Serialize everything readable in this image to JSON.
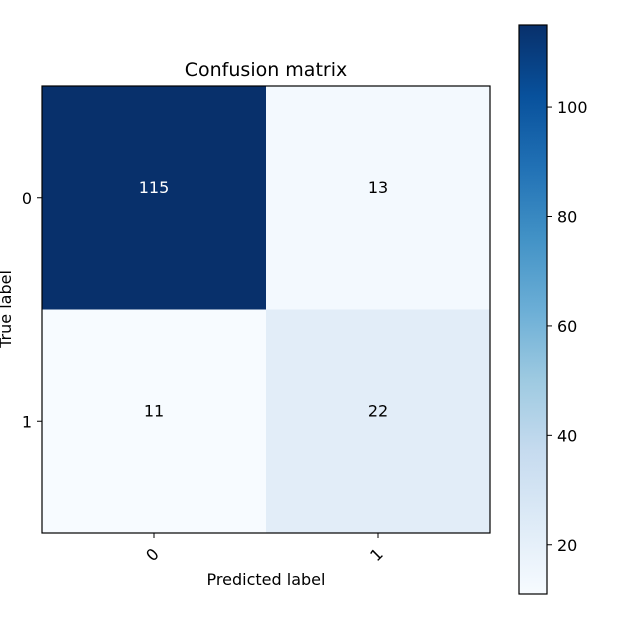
{
  "chart_data": {
    "type": "heatmap",
    "title": "Confusion matrix",
    "xlabel": "Predicted label",
    "ylabel": "True label",
    "x_categories": [
      "0",
      "1"
    ],
    "y_categories": [
      "0",
      "1"
    ],
    "values": [
      [
        115,
        13
      ],
      [
        11,
        22
      ]
    ],
    "colormap": "Blues",
    "value_range": [
      11,
      115
    ],
    "colorbar": {
      "ticks": [
        20,
        40,
        60,
        80,
        100
      ],
      "tick_labels": [
        "20",
        "40",
        "60",
        "80",
        "100"
      ],
      "placement": "right"
    },
    "x_tick_rotation_deg": 45,
    "grid": false
  }
}
